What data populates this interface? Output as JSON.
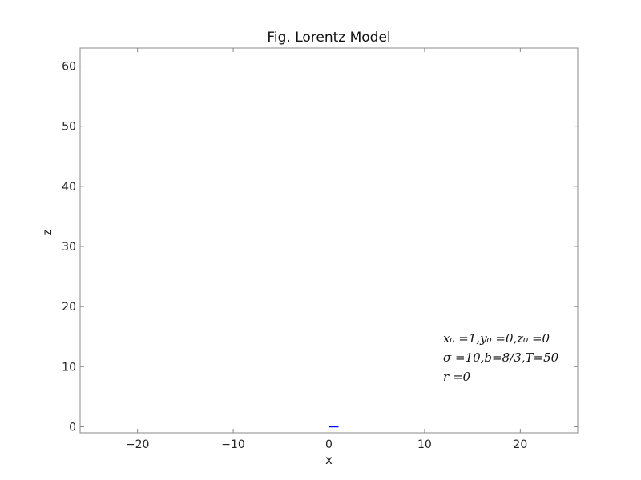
{
  "chart_data": {
    "type": "line",
    "title": "Fig. Lorentz Model",
    "xlabel": "x",
    "ylabel": "z",
    "xlim": [
      -26,
      26
    ],
    "ylim": [
      -1,
      63
    ],
    "xticks": [
      -20,
      -10,
      0,
      10,
      20
    ],
    "xtick_labels": [
      "−20",
      "−10",
      "0",
      "10",
      "20"
    ],
    "yticks": [
      0,
      10,
      20,
      30,
      40,
      50,
      60
    ],
    "ytick_labels": [
      "0",
      "10",
      "20",
      "30",
      "40",
      "50",
      "60"
    ],
    "grid": false,
    "series": [
      {
        "color": "#0000ff",
        "x": [
          0.0,
          1.0
        ],
        "y": [
          0.0,
          0.0
        ]
      }
    ],
    "annotations": [
      {
        "text": "x₀ =1,y₀ =0,z₀ =0"
      },
      {
        "text": "σ =10,b=8/3,T=50"
      },
      {
        "text": "r =0"
      }
    ],
    "axis_color": "#888888",
    "line_color": "#0000ff"
  }
}
